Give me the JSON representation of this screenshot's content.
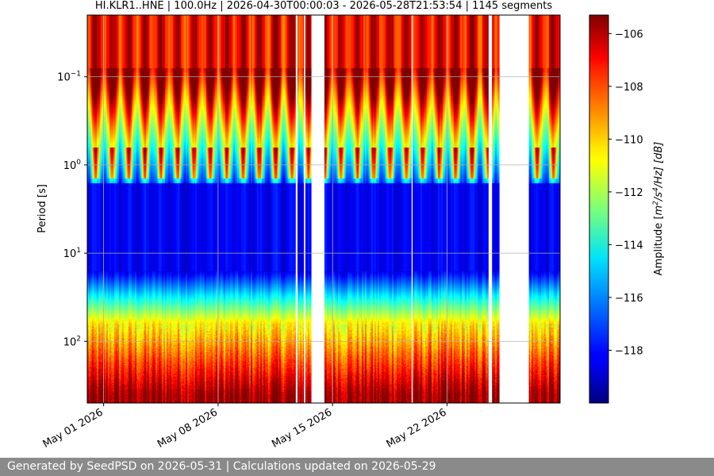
{
  "chart_data": {
    "type": "heatmap",
    "title": "HI.KLR1..HNE | 100.0Hz | 2026-04-30T00:00:03 - 2026-05-28T21:53:54 | 1145 segments",
    "ylabel": "Period [s]",
    "y_scale": "log",
    "y_inverted": true,
    "ylim": [
      0.02,
      500
    ],
    "x_range": [
      "2026-04-30T00:00:03",
      "2026-05-28T21:53:54"
    ],
    "x_ticks": [
      {
        "date": "2026-05-01",
        "label": "May 01 2026"
      },
      {
        "date": "2026-05-08",
        "label": "May 08 2026"
      },
      {
        "date": "2026-05-15",
        "label": "May 15 2026"
      },
      {
        "date": "2026-05-22",
        "label": "May 22 2026"
      }
    ],
    "y_ticks": [
      {
        "value": 0.1,
        "label": "10",
        "exp": "−1"
      },
      {
        "value": 1,
        "label": "10",
        "exp": "0"
      },
      {
        "value": 10,
        "label": "10",
        "exp": "1"
      },
      {
        "value": 100,
        "label": "10",
        "exp": "2"
      }
    ],
    "colorbar": {
      "label": "Amplitude [m²/s⁴/Hz] [dB]",
      "label_main": "Amplitude [",
      "label_m": "m",
      "label_sup1": "2",
      "label_mid": "/s",
      "label_sup2": "4",
      "label_end": "/Hz] [dB]",
      "colormap": "jet",
      "range": [
        -120,
        -105.3
      ],
      "ticks": [
        -106,
        -108,
        -110,
        -112,
        -114,
        -116,
        -118
      ]
    },
    "gaps": [
      [
        "2026-05-12T18:00:00",
        "2026-05-12T20:30:00"
      ],
      [
        "2026-05-13T06:00:00",
        "2026-05-13T08:00:00"
      ],
      [
        "2026-05-13T17:00:00",
        "2026-05-14T12:00:00"
      ],
      [
        "2026-05-19T20:00:00",
        "2026-05-19T21:30:00"
      ],
      [
        "2026-05-24T13:00:00",
        "2026-05-24T18:00:00"
      ],
      [
        "2026-05-25T05:00:00",
        "2026-05-27T00:00:00"
      ]
    ],
    "grid": true
  },
  "footer": {
    "text": "Generated by SeedPSD on 2026-05-31 | Calculations updated on 2026-05-29"
  }
}
